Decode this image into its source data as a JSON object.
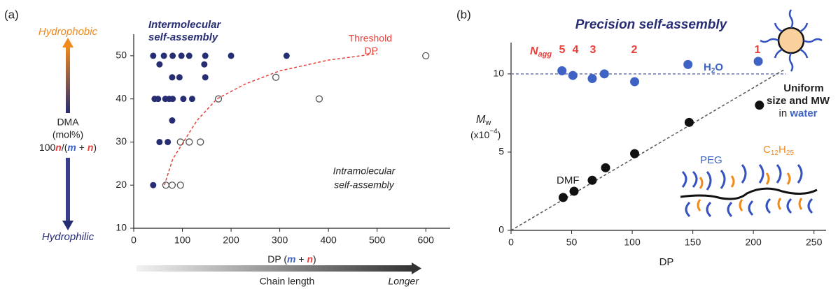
{
  "chart_data": [
    {
      "type": "scatter",
      "panel_label": "(a)",
      "top_label": "Hydrophobic",
      "bottom_label": "Hydrophilic",
      "ylabel": [
        "DMA",
        "(mol%)"
      ],
      "ylabel_formula": [
        "100",
        "n",
        "/(",
        "m",
        " + ",
        "n",
        ")"
      ],
      "xlabel": [
        "DP (",
        "m",
        " + ",
        "n",
        ")"
      ],
      "arrow_labels": [
        "Chain length",
        "Longer"
      ],
      "annotations": {
        "inter": [
          "Intermolecular",
          "self-assembly"
        ],
        "threshold": [
          "Threshold",
          "DP"
        ],
        "intra": [
          "Intramolecular",
          "self-assembly"
        ]
      },
      "xlim": [
        0,
        650
      ],
      "ylim": [
        10,
        55
      ],
      "xticks": [
        0,
        100,
        200,
        300,
        400,
        500,
        600
      ],
      "yticks": [
        10,
        20,
        30,
        40,
        50
      ],
      "series": [
        {
          "style": "filled",
          "color": "#272d72",
          "x": [
            40,
            62,
            80,
            98,
            114,
            147,
            200,
            314,
            53,
            145,
            79,
            94,
            147,
            43,
            50,
            65,
            73,
            80,
            102,
            120,
            79,
            53,
            70,
            40
          ],
          "values": [
            50,
            50,
            50,
            50,
            50,
            50,
            50,
            50,
            48,
            48,
            45,
            45,
            45,
            40,
            40,
            40,
            40,
            40,
            40,
            40,
            35,
            30,
            30,
            20
          ]
        },
        {
          "style": "open",
          "color": "#555555",
          "x": [
            66,
            79,
            96,
            96,
            114,
            137,
            174,
            292,
            381,
            600
          ],
          "values": [
            20,
            20,
            20,
            30,
            30,
            30,
            40,
            45,
            40,
            50
          ]
        },
        {
          "style": "dashed",
          "color": "#e8403a",
          "x": [
            63,
            80,
            102,
            130,
            171,
            230,
            300,
            400,
            500
          ],
          "values": [
            20,
            26,
            30,
            35,
            40,
            43.5,
            46.5,
            49,
            50.5
          ]
        }
      ]
    },
    {
      "type": "scatter",
      "panel_label": "(b)",
      "title": "Precision self-assembly",
      "ylabel": [
        "M",
        "w"
      ],
      "yunit": [
        "(x10",
        "−4",
        ")"
      ],
      "xlabel": "DP",
      "nagg_label": [
        "N",
        "agg"
      ],
      "nagg": [
        5,
        4,
        3,
        2,
        1
      ],
      "annotations": {
        "water": [
          "H",
          "2",
          "O"
        ],
        "dmf": "DMF",
        "uniform": [
          "Uniform",
          "size and MW",
          "in ",
          "water"
        ],
        "peg": "PEG",
        "alkyl": [
          "C",
          "12",
          "H",
          "25"
        ]
      },
      "xlim": [
        0,
        260
      ],
      "ylim": [
        0,
        12
      ],
      "xticks": [
        0,
        50,
        100,
        150,
        200,
        250
      ],
      "yticks": [
        0,
        5,
        10
      ],
      "series": [
        {
          "style": "dashed",
          "color": "#6a78b8",
          "x": [
            0,
            227
          ],
          "values": [
            10,
            10
          ]
        },
        {
          "style": "dashed",
          "color": "#555555",
          "x": [
            0,
            226
          ],
          "values": [
            0,
            10.3
          ]
        },
        {
          "style": "filled",
          "color": "#3f63c4",
          "x": [
            42,
            51,
            67,
            77,
            102,
            146,
            204
          ],
          "values": [
            10.2,
            9.9,
            9.7,
            10.0,
            9.5,
            10.6,
            10.8
          ]
        },
        {
          "style": "filled",
          "color": "#111111",
          "x": [
            43,
            52,
            67,
            78,
            102,
            147,
            205
          ],
          "values": [
            2.1,
            2.5,
            3.2,
            4.0,
            4.9,
            6.9,
            8.0
          ]
        }
      ]
    }
  ]
}
